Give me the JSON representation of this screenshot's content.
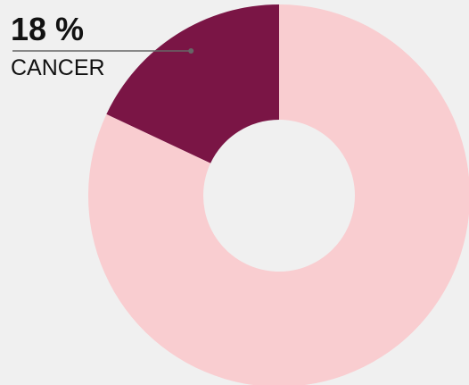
{
  "chart_data": {
    "type": "donut",
    "categories": [
      "CANCER",
      null
    ],
    "values": [
      18,
      82
    ],
    "value_labels": [
      "18 %",
      null
    ],
    "colors": [
      "#7a1545",
      "#f9cdd0"
    ]
  }
}
